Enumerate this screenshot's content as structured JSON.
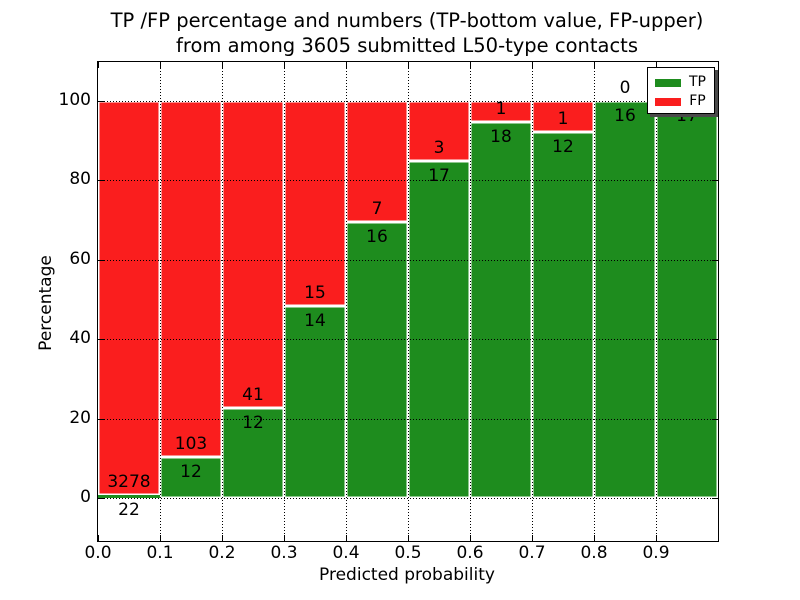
{
  "title": {
    "line1": "TP /FP percentage and numbers (TP-bottom value, FP-upper)",
    "line2": "from among 3605 submitted L50-type contacts"
  },
  "axes": {
    "xlabel": "Predicted probability",
    "ylabel": "Percentage",
    "xtick_labels": [
      "0.0",
      "0.1",
      "0.2",
      "0.3",
      "0.4",
      "0.5",
      "0.6",
      "0.7",
      "0.8",
      "0.9"
    ],
    "ytick_labels": [
      "0",
      "20",
      "40",
      "60",
      "80",
      "100"
    ],
    "ytick_values": [
      0,
      20,
      40,
      60,
      80,
      100
    ]
  },
  "legend": {
    "items": [
      {
        "label": "TP",
        "color": "#1e8c1e"
      },
      {
        "label": "FP",
        "color": "#fa1e1e"
      }
    ],
    "position": "upper right",
    "shadow": true
  },
  "colors": {
    "tp": "#1e8c1e",
    "fp": "#fa1e1e",
    "grid": "#000000",
    "background": "#ffffff"
  },
  "chart_data": {
    "type": "bar",
    "stacked": true,
    "orientation": "vertical",
    "title": "TP /FP percentage and numbers (TP-bottom value, FP-upper) from among 3605 submitted L50-type contacts",
    "xlabel": "Predicted probability",
    "ylabel": "Percentage",
    "total_contacts": 3605,
    "bin_width": 0.1,
    "bin_starts": [
      0.0,
      0.1,
      0.2,
      0.3,
      0.4,
      0.5,
      0.6,
      0.7,
      0.8,
      0.9
    ],
    "categories": [
      "0.0-0.1",
      "0.1-0.2",
      "0.2-0.3",
      "0.3-0.4",
      "0.4-0.5",
      "0.5-0.6",
      "0.6-0.7",
      "0.7-0.8",
      "0.8-0.9",
      "0.9-1.0"
    ],
    "series": [
      {
        "name": "TP",
        "color": "#1e8c1e",
        "counts": [
          22,
          12,
          12,
          14,
          16,
          17,
          18,
          12,
          16,
          17
        ],
        "percent": [
          0.67,
          10.43,
          22.64,
          48.28,
          69.57,
          85.0,
          94.74,
          92.31,
          100.0,
          100.0
        ]
      },
      {
        "name": "FP",
        "color": "#fa1e1e",
        "counts": [
          3278,
          103,
          41,
          15,
          7,
          3,
          1,
          1,
          0,
          0
        ],
        "percent": [
          99.33,
          89.57,
          77.36,
          51.72,
          30.43,
          15.0,
          5.26,
          7.69,
          0.0,
          0.0
        ]
      }
    ],
    "xlim": [
      0.0,
      1.0
    ],
    "ylim": [
      -11,
      110
    ],
    "xticks": [
      0.0,
      0.1,
      0.2,
      0.3,
      0.4,
      0.5,
      0.6,
      0.7,
      0.8,
      0.9
    ],
    "yticks": [
      0,
      20,
      40,
      60,
      80,
      100
    ],
    "grid": "dotted",
    "legend_position": "upper right"
  }
}
